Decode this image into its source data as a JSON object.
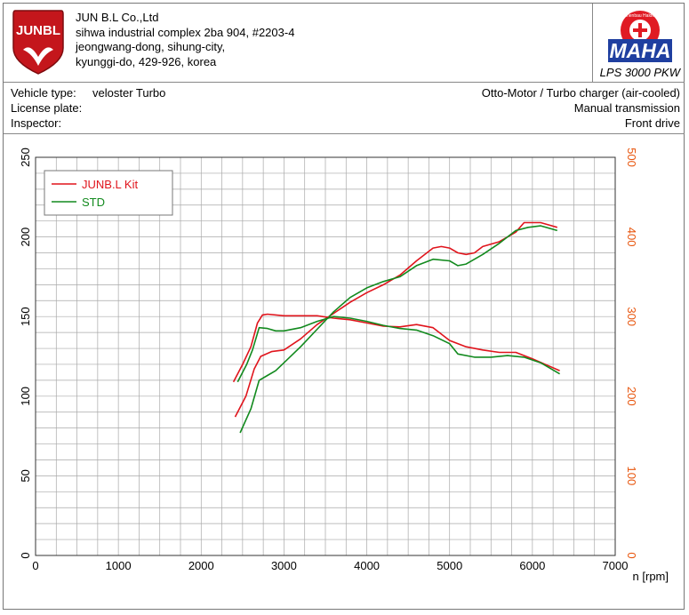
{
  "company": {
    "name": "JUN B.L Co.,Ltd",
    "address1": "sihwa industrial complex 2ba 904, #2203-4",
    "address2": "jeongwang-dong, sihung-city,",
    "address3": "kyunggi-do, 429-926, korea",
    "logo_text": "JUNBL"
  },
  "brand": {
    "logo_text": "MAHA",
    "ring_text": "Maschinenbau Haldenwang",
    "model": "LPS 3000 PKW"
  },
  "vehicle": {
    "type_label": "Vehicle type:",
    "type_value": "veloster Turbo",
    "plate_label": "License plate:",
    "inspector_label": "Inspector:",
    "engine": "Otto-Motor / Turbo charger (air-cooled)",
    "transmission": "Manual transmission",
    "drive": "Front drive"
  },
  "colors": {
    "kit": "#e0141c",
    "std": "#128a1e",
    "right_axis": "#e8560e",
    "grid": "#a8a8a8"
  },
  "chart_data": {
    "type": "line",
    "xlabel": "n [rpm]",
    "xlim": [
      0,
      7000
    ],
    "x_ticks": [
      0,
      1000,
      2000,
      3000,
      4000,
      5000,
      6000,
      7000
    ],
    "ylim_left": [
      0,
      250
    ],
    "y_ticks_left": [
      0,
      50,
      100,
      150,
      200,
      250
    ],
    "ylim_right": [
      0,
      500
    ],
    "y_ticks_right": [
      0,
      100,
      200,
      300,
      400,
      500
    ],
    "grid": true,
    "legend_position": "top-left",
    "legend": [
      "JUNB.L Kit",
      "STD"
    ],
    "series": [
      {
        "name": "JUNB.L Kit",
        "color_key": "kit",
        "axis": "left",
        "points": [
          [
            2410,
            87
          ],
          [
            2540,
            100
          ],
          [
            2640,
            117
          ],
          [
            2720,
            125
          ],
          [
            2850,
            128
          ],
          [
            3000,
            129
          ],
          [
            3200,
            136
          ],
          [
            3400,
            145
          ],
          [
            3600,
            152
          ],
          [
            3800,
            159
          ],
          [
            4000,
            165
          ],
          [
            4200,
            170
          ],
          [
            4400,
            176
          ],
          [
            4600,
            185
          ],
          [
            4800,
            193
          ],
          [
            4900,
            194
          ],
          [
            5000,
            193
          ],
          [
            5100,
            190
          ],
          [
            5200,
            189
          ],
          [
            5300,
            190
          ],
          [
            5400,
            194
          ],
          [
            5600,
            197
          ],
          [
            5800,
            203
          ],
          [
            5900,
            209
          ],
          [
            6100,
            209
          ],
          [
            6300,
            206
          ]
        ]
      },
      {
        "name": "STD",
        "color_key": "std",
        "axis": "left",
        "points": [
          [
            2470,
            77
          ],
          [
            2600,
            92
          ],
          [
            2700,
            110
          ],
          [
            2800,
            113
          ],
          [
            2900,
            116
          ],
          [
            3000,
            121
          ],
          [
            3200,
            131
          ],
          [
            3400,
            142
          ],
          [
            3600,
            153
          ],
          [
            3800,
            162
          ],
          [
            4000,
            168
          ],
          [
            4200,
            172
          ],
          [
            4400,
            175
          ],
          [
            4600,
            182
          ],
          [
            4800,
            186
          ],
          [
            5000,
            185
          ],
          [
            5100,
            182
          ],
          [
            5200,
            183
          ],
          [
            5400,
            189
          ],
          [
            5600,
            196
          ],
          [
            5800,
            204
          ],
          [
            5950,
            206
          ],
          [
            6100,
            207
          ],
          [
            6300,
            204
          ]
        ]
      },
      {
        "name": "JUNB.L Kit",
        "color_key": "kit",
        "axis": "right",
        "points": [
          [
            2390,
            218
          ],
          [
            2500,
            240
          ],
          [
            2600,
            262
          ],
          [
            2680,
            292
          ],
          [
            2740,
            302
          ],
          [
            2800,
            303
          ],
          [
            3000,
            301
          ],
          [
            3200,
            301
          ],
          [
            3400,
            301
          ],
          [
            3600,
            298
          ],
          [
            3800,
            296
          ],
          [
            4000,
            292
          ],
          [
            4200,
            288
          ],
          [
            4400,
            287
          ],
          [
            4600,
            290
          ],
          [
            4800,
            286
          ],
          [
            5000,
            270
          ],
          [
            5200,
            262
          ],
          [
            5400,
            258
          ],
          [
            5600,
            255
          ],
          [
            5800,
            255
          ],
          [
            6000,
            247
          ],
          [
            6200,
            238
          ],
          [
            6330,
            232
          ]
        ]
      },
      {
        "name": "STD",
        "color_key": "std",
        "axis": "right",
        "points": [
          [
            2440,
            218
          ],
          [
            2550,
            240
          ],
          [
            2620,
            258
          ],
          [
            2700,
            286
          ],
          [
            2800,
            285
          ],
          [
            2900,
            282
          ],
          [
            3000,
            282
          ],
          [
            3200,
            286
          ],
          [
            3400,
            294
          ],
          [
            3600,
            300
          ],
          [
            3800,
            298
          ],
          [
            4000,
            294
          ],
          [
            4200,
            289
          ],
          [
            4400,
            285
          ],
          [
            4600,
            283
          ],
          [
            4800,
            276
          ],
          [
            5000,
            266
          ],
          [
            5100,
            253
          ],
          [
            5300,
            249
          ],
          [
            5500,
            249
          ],
          [
            5700,
            251
          ],
          [
            5900,
            249
          ],
          [
            6100,
            242
          ],
          [
            6330,
            228
          ]
        ]
      }
    ]
  }
}
